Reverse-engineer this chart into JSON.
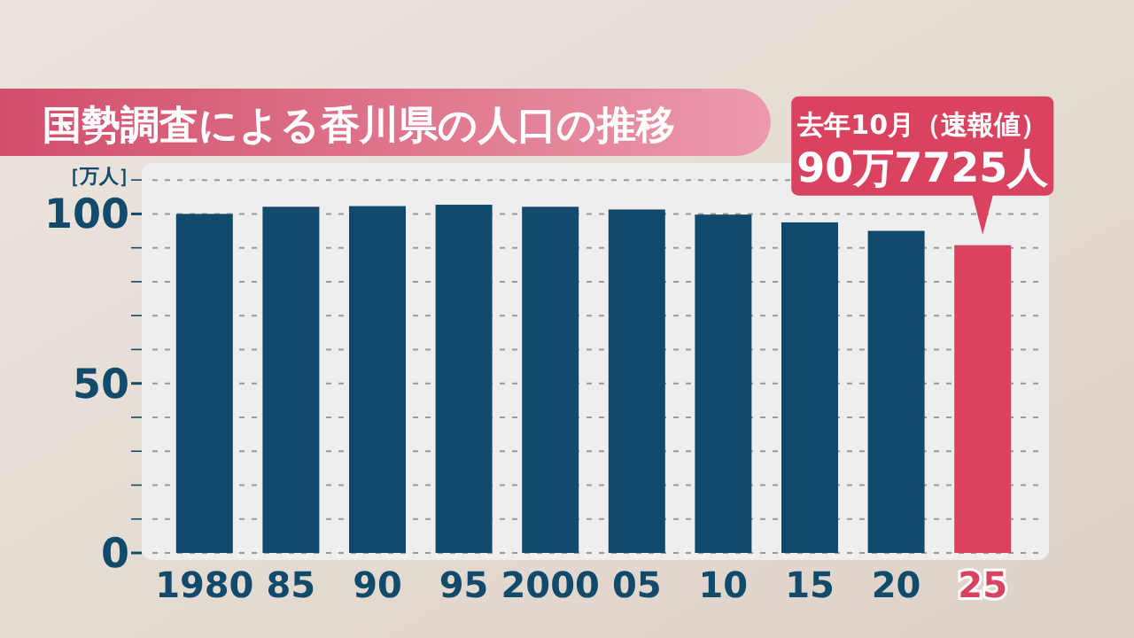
{
  "chart_data": {
    "type": "bar",
    "title": "国勢調査による香川県の人口の推移",
    "ylabel": "［万人］",
    "categories": [
      "1980",
      "85",
      "90",
      "95",
      "2000",
      "05",
      "10",
      "15",
      "20",
      "25"
    ],
    "values": [
      100.0,
      102.1,
      102.3,
      102.7,
      102.1,
      101.3,
      99.8,
      97.5,
      95.0,
      90.7725
    ],
    "colors": [
      "#114a6b",
      "#114a6b",
      "#114a6b",
      "#114a6b",
      "#114a6b",
      "#114a6b",
      "#114a6b",
      "#114a6b",
      "#114a6b",
      "#d9435f"
    ],
    "ylim": [
      0,
      115
    ],
    "yticks": [
      0,
      {
        "value": 10,
        "label": null
      },
      {
        "value": 20,
        "label": null
      },
      {
        "value": 30,
        "label": null
      },
      {
        "value": 40,
        "label": null
      },
      50,
      {
        "value": 60,
        "label": null
      },
      {
        "value": 70,
        "label": null
      },
      {
        "value": 80,
        "label": null
      },
      {
        "value": 90,
        "label": null
      },
      100,
      {
        "value": 110,
        "label": null
      }
    ],
    "grid": "y",
    "annotations": [
      {
        "text": "去年10月（速報値）\n90万7725人",
        "x": "25",
        "y": 90.7725
      }
    ]
  }
}
